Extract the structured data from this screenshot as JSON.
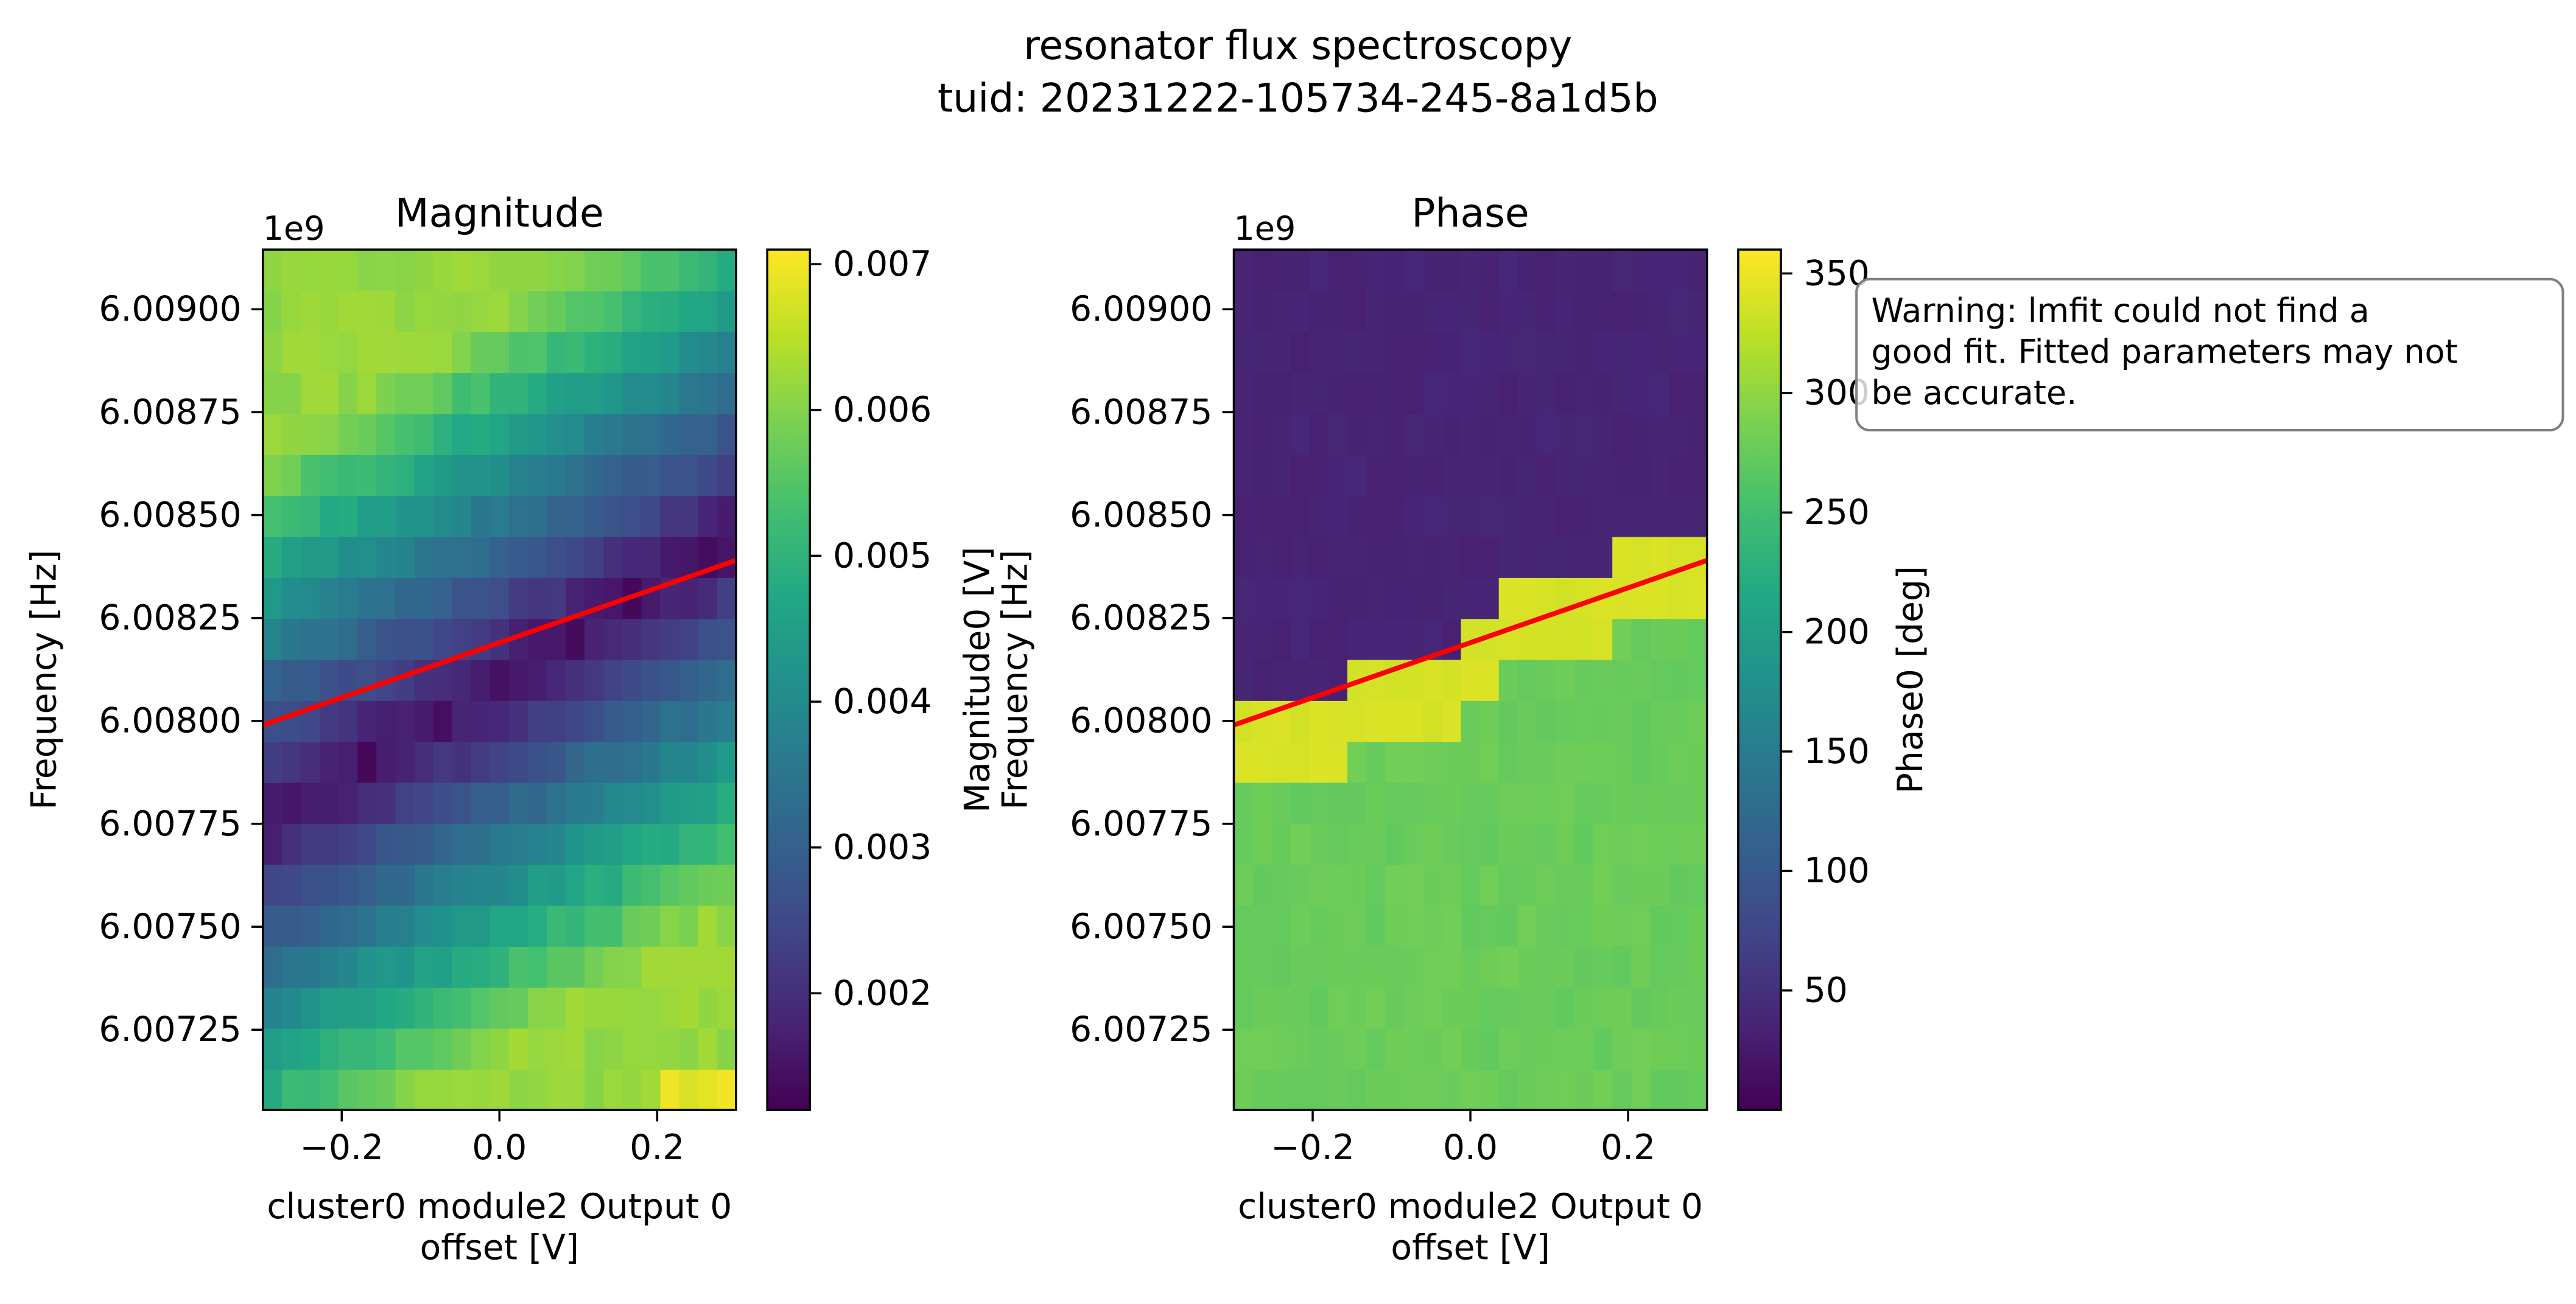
{
  "figure": {
    "title_line1": "resonator flux spectroscopy",
    "title_line2": "tuid: 20231222-105734-245-8a1d5b"
  },
  "warning": {
    "line1": "Warning: lmfit could not find a",
    "line2": "good fit. Fitted parameters may not",
    "line3": "be accurate."
  },
  "chart_data": [
    {
      "type": "heatmap",
      "title": "Magnitude",
      "xlabel_line1": "cluster0 module2 Output 0",
      "xlabel_line2": "offset [V]",
      "ylabel": "Frequency [Hz]",
      "y_offset_label": "1e9",
      "xlim": [
        -0.3,
        0.3
      ],
      "ylim": [
        6.007055,
        6.009145
      ],
      "x_ticks": [
        -0.2,
        0.0,
        0.2
      ],
      "x_tick_labels": [
        "−0.2",
        "0.0",
        "0.2"
      ],
      "y_ticks": [
        6.00725,
        6.0075,
        6.00775,
        6.008,
        6.00825,
        6.0085,
        6.00875,
        6.009
      ],
      "y_tick_labels": [
        "6.00725",
        "6.00750",
        "6.00775",
        "6.00800",
        "6.00825",
        "6.00850",
        "6.00875",
        "6.00900"
      ],
      "colormap": "viridis",
      "colorbar": {
        "label": "Magnitude0 [V]",
        "range": [
          0.0012,
          0.0071
        ],
        "ticks": [
          0.002,
          0.003,
          0.004,
          0.005,
          0.006,
          0.007
        ],
        "tick_labels": [
          "0.002",
          "0.003",
          "0.004",
          "0.005",
          "0.006",
          "0.007"
        ]
      },
      "fit_line": {
        "color": "#ff0000",
        "x": [
          -0.3,
          0.3
        ],
        "y": [
          6.00799,
          6.00839
        ]
      }
    },
    {
      "type": "heatmap",
      "title": "Phase",
      "xlabel_line1": "cluster0 module2 Output 0",
      "xlabel_line2": "offset [V]",
      "ylabel": "Frequency [Hz]",
      "y_offset_label": "1e9",
      "xlim": [
        -0.3,
        0.3
      ],
      "ylim": [
        6.007055,
        6.009145
      ],
      "x_ticks": [
        -0.2,
        0.0,
        0.2
      ],
      "x_tick_labels": [
        "−0.2",
        "0.0",
        "0.2"
      ],
      "y_ticks": [
        6.00725,
        6.0075,
        6.00775,
        6.008,
        6.00825,
        6.0085,
        6.00875,
        6.009
      ],
      "y_tick_labels": [
        "6.00725",
        "6.00750",
        "6.00775",
        "6.00800",
        "6.00825",
        "6.00850",
        "6.00875",
        "6.00900"
      ],
      "colormap": "viridis",
      "colorbar": {
        "label": "Phase0 [deg]",
        "range": [
          0,
          360
        ],
        "ticks": [
          50,
          100,
          150,
          200,
          250,
          300,
          350
        ],
        "tick_labels": [
          "50",
          "100",
          "150",
          "200",
          "250",
          "300",
          "350"
        ]
      },
      "fit_line": {
        "color": "#ff0000",
        "x": [
          -0.3,
          0.3
        ],
        "y": [
          6.00799,
          6.00839
        ]
      }
    }
  ]
}
